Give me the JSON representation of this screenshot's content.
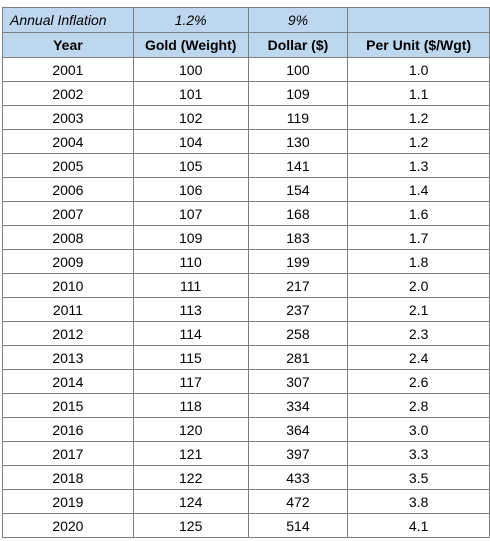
{
  "inflation_row": {
    "label": "Annual Inflation",
    "gold_rate": "1.2%",
    "dollar_rate": "9%",
    "per_unit_rate": ""
  },
  "headers": [
    "Year",
    "Gold (Weight)",
    "Dollar ($)",
    "Per Unit ($/Wgt)"
  ],
  "rows": [
    [
      "2001",
      "100",
      "100",
      "1.0"
    ],
    [
      "2002",
      "101",
      "109",
      "1.1"
    ],
    [
      "2003",
      "102",
      "119",
      "1.2"
    ],
    [
      "2004",
      "104",
      "130",
      "1.2"
    ],
    [
      "2005",
      "105",
      "141",
      "1.3"
    ],
    [
      "2006",
      "106",
      "154",
      "1.4"
    ],
    [
      "2007",
      "107",
      "168",
      "1.6"
    ],
    [
      "2008",
      "109",
      "183",
      "1.7"
    ],
    [
      "2009",
      "110",
      "199",
      "1.8"
    ],
    [
      "2010",
      "111",
      "217",
      "2.0"
    ],
    [
      "2011",
      "113",
      "237",
      "2.1"
    ],
    [
      "2012",
      "114",
      "258",
      "2.3"
    ],
    [
      "2013",
      "115",
      "281",
      "2.4"
    ],
    [
      "2014",
      "117",
      "307",
      "2.6"
    ],
    [
      "2015",
      "118",
      "334",
      "2.8"
    ],
    [
      "2016",
      "120",
      "364",
      "3.0"
    ],
    [
      "2017",
      "121",
      "397",
      "3.3"
    ],
    [
      "2018",
      "122",
      "433",
      "3.5"
    ],
    [
      "2019",
      "124",
      "472",
      "3.8"
    ],
    [
      "2020",
      "125",
      "514",
      "4.1"
    ]
  ],
  "colors": {
    "header_fill": "#bdd7ee",
    "grid_line": "#7f7f7f"
  }
}
